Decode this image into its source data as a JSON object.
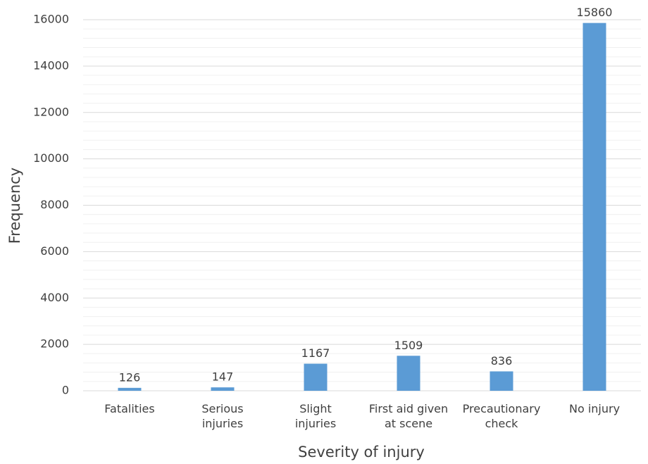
{
  "chart_data": {
    "type": "bar",
    "x_label": "Severity of injury",
    "y_label": "Frequency",
    "categories": [
      "Fatalities",
      "Serious\ninjuries",
      "Slight\ninjuries",
      "First aid given\nat scene",
      "Precautionary\ncheck",
      "No injury"
    ],
    "values": [
      126,
      147,
      1167,
      1509,
      836,
      15860
    ],
    "color": "#5b9bd5",
    "ylim": [
      0,
      16000
    ],
    "yticks": [
      0,
      2000,
      4000,
      6000,
      8000,
      10000,
      12000,
      14000,
      16000
    ],
    "grid": true,
    "minor_grid": true,
    "data_labels": true
  }
}
